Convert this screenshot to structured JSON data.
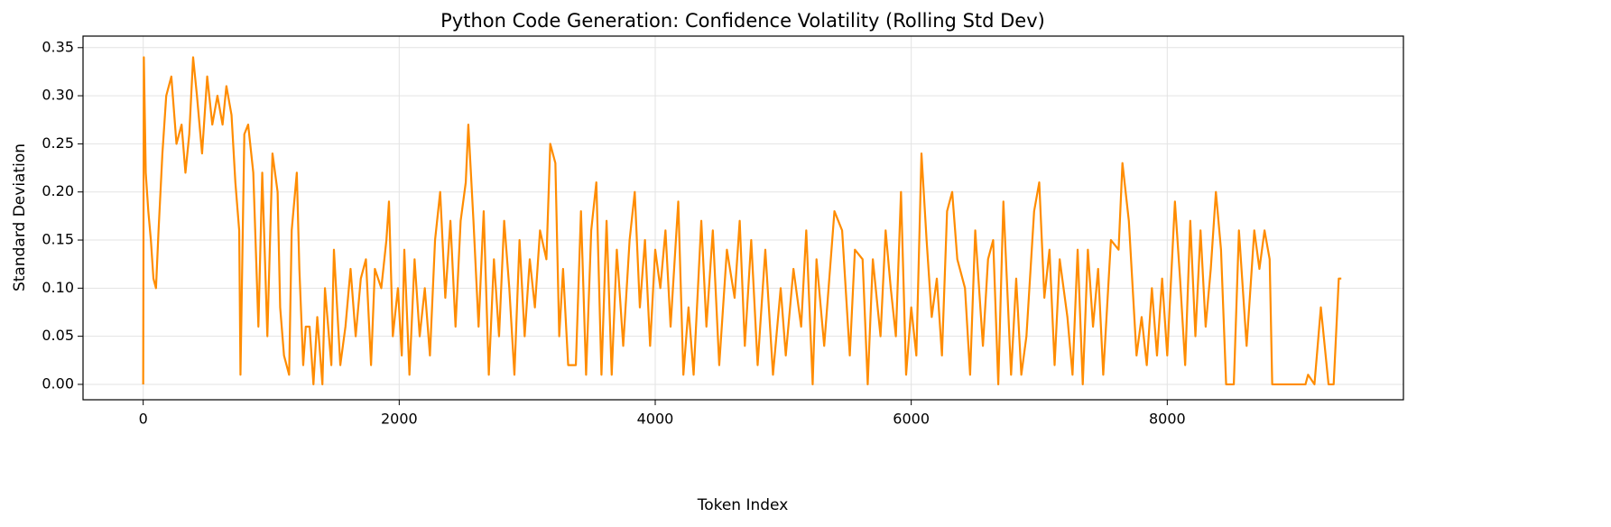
{
  "chart_data": {
    "type": "line",
    "title": "Python Code Generation: Confidence Volatility (Rolling Std Dev)",
    "x_label": "Token Index",
    "y_label": "Standard Deviation",
    "xlim": [
      -470,
      9845
    ],
    "ylim": [
      -0.016,
      0.362
    ],
    "xticks": [
      0,
      2000,
      4000,
      6000,
      8000
    ],
    "yticks": [
      {
        "value": 0,
        "label": "0.00"
      },
      {
        "value": 0.05,
        "label": "0.05"
      },
      {
        "value": 0.1,
        "label": "0.10"
      },
      {
        "value": 0.15,
        "label": "0.15"
      },
      {
        "value": 0.2,
        "label": "0.20"
      },
      {
        "value": 0.25,
        "label": "0.25"
      },
      {
        "value": 0.3,
        "label": "0.30"
      },
      {
        "value": 0.35,
        "label": "0.35"
      }
    ],
    "grid": true,
    "color": "#ff8c00",
    "x": [
      0,
      5,
      20,
      40,
      60,
      80,
      100,
      120,
      150,
      180,
      220,
      260,
      300,
      330,
      360,
      390,
      420,
      460,
      500,
      540,
      580,
      620,
      650,
      690,
      720,
      750,
      760,
      790,
      820,
      860,
      900,
      930,
      970,
      1010,
      1050,
      1070,
      1100,
      1140,
      1160,
      1200,
      1220,
      1250,
      1270,
      1300,
      1330,
      1360,
      1400,
      1420,
      1470,
      1490,
      1540,
      1580,
      1620,
      1660,
      1700,
      1740,
      1780,
      1810,
      1860,
      1900,
      1920,
      1950,
      1990,
      2020,
      2040,
      2080,
      2120,
      2160,
      2200,
      2240,
      2280,
      2320,
      2360,
      2400,
      2440,
      2480,
      2520,
      2540,
      2580,
      2620,
      2660,
      2700,
      2740,
      2780,
      2820,
      2860,
      2900,
      2940,
      2980,
      3020,
      3060,
      3100,
      3150,
      3180,
      3220,
      3250,
      3280,
      3320,
      3380,
      3420,
      3460,
      3500,
      3540,
      3580,
      3620,
      3660,
      3700,
      3750,
      3800,
      3840,
      3880,
      3920,
      3960,
      4000,
      4040,
      4080,
      4120,
      4180,
      4220,
      4260,
      4300,
      4360,
      4400,
      4450,
      4500,
      4560,
      4620,
      4660,
      4700,
      4750,
      4800,
      4860,
      4920,
      4980,
      5020,
      5080,
      5140,
      5180,
      5230,
      5260,
      5320,
      5360,
      5400,
      5460,
      5520,
      5560,
      5620,
      5660,
      5700,
      5760,
      5800,
      5840,
      5880,
      5920,
      5960,
      6000,
      6040,
      6080,
      6120,
      6160,
      6200,
      6240,
      6280,
      6320,
      6360,
      6420,
      6460,
      6500,
      6560,
      6600,
      6640,
      6680,
      6720,
      6780,
      6820,
      6860,
      6900,
      6960,
      7000,
      7040,
      7080,
      7120,
      7160,
      7220,
      7260,
      7300,
      7340,
      7380,
      7420,
      7460,
      7500,
      7560,
      7620,
      7650,
      7700,
      7760,
      7800,
      7840,
      7880,
      7920,
      7960,
      8000,
      8060,
      8100,
      8140,
      8180,
      8220,
      8260,
      8300,
      8340,
      8380,
      8420,
      8460,
      8520,
      8560,
      8620,
      8680,
      8720,
      8760,
      8800,
      8820,
      8900,
      9000,
      9080,
      9100,
      9150,
      9200,
      9260,
      9300,
      9340,
      9360
    ],
    "values": [
      0,
      0.34,
      0.22,
      0.18,
      0.15,
      0.11,
      0.1,
      0.16,
      0.24,
      0.3,
      0.32,
      0.25,
      0.27,
      0.22,
      0.26,
      0.34,
      0.3,
      0.24,
      0.32,
      0.27,
      0.3,
      0.27,
      0.31,
      0.28,
      0.21,
      0.16,
      0.01,
      0.26,
      0.27,
      0.22,
      0.06,
      0.22,
      0.05,
      0.24,
      0.2,
      0.08,
      0.03,
      0.01,
      0.16,
      0.22,
      0.12,
      0.02,
      0.06,
      0.06,
      0,
      0.07,
      0,
      0.1,
      0.02,
      0.14,
      0.02,
      0.06,
      0.12,
      0.05,
      0.11,
      0.13,
      0.02,
      0.12,
      0.1,
      0.15,
      0.19,
      0.05,
      0.1,
      0.03,
      0.14,
      0.01,
      0.13,
      0.05,
      0.1,
      0.03,
      0.15,
      0.2,
      0.09,
      0.17,
      0.06,
      0.17,
      0.21,
      0.27,
      0.17,
      0.06,
      0.18,
      0.01,
      0.13,
      0.05,
      0.17,
      0.1,
      0.01,
      0.15,
      0.05,
      0.13,
      0.08,
      0.16,
      0.13,
      0.25,
      0.23,
      0.05,
      0.12,
      0.02,
      0.02,
      0.18,
      0.01,
      0.16,
      0.21,
      0.01,
      0.17,
      0.01,
      0.14,
      0.04,
      0.15,
      0.2,
      0.08,
      0.15,
      0.04,
      0.14,
      0.1,
      0.16,
      0.06,
      0.19,
      0.01,
      0.08,
      0.01,
      0.17,
      0.06,
      0.16,
      0.02,
      0.14,
      0.09,
      0.17,
      0.04,
      0.15,
      0.02,
      0.14,
      0.01,
      0.1,
      0.03,
      0.12,
      0.06,
      0.16,
      0,
      0.13,
      0.04,
      0.11,
      0.18,
      0.16,
      0.03,
      0.14,
      0.13,
      0,
      0.13,
      0.05,
      0.16,
      0.1,
      0.05,
      0.2,
      0.01,
      0.08,
      0.03,
      0.24,
      0.15,
      0.07,
      0.11,
      0.03,
      0.18,
      0.2,
      0.13,
      0.1,
      0.01,
      0.16,
      0.04,
      0.13,
      0.15,
      0,
      0.19,
      0.01,
      0.11,
      0.01,
      0.05,
      0.18,
      0.21,
      0.09,
      0.14,
      0.02,
      0.13,
      0.07,
      0.01,
      0.14,
      0,
      0.14,
      0.06,
      0.12,
      0.01,
      0.15,
      0.14,
      0.23,
      0.17,
      0.03,
      0.07,
      0.02,
      0.1,
      0.03,
      0.11,
      0.03,
      0.19,
      0.11,
      0.02,
      0.17,
      0.05,
      0.16,
      0.06,
      0.12,
      0.2,
      0.14,
      0,
      0,
      0.16,
      0.04,
      0.16,
      0.12,
      0.16,
      0.13,
      0,
      0,
      0,
      0,
      0.01,
      0,
      0.08,
      0,
      0,
      0.11,
      0.11
    ]
  }
}
